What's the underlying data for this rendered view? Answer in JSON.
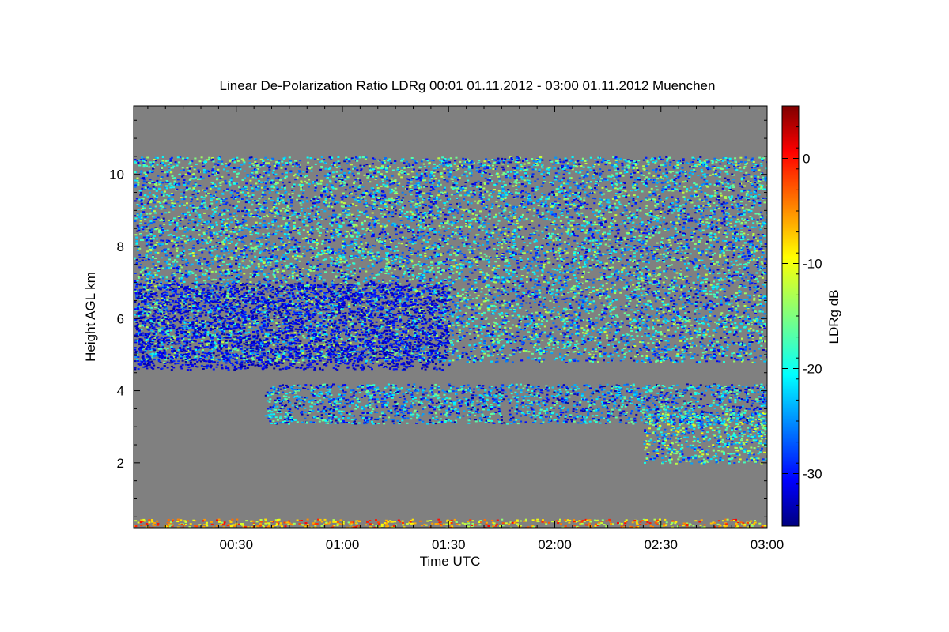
{
  "chart_data": {
    "type": "heatmap",
    "title": "Linear De-Polarization Ratio LDRg   00:01 01.11.2012 - 03:00 01.11.2012 Muenchen",
    "xlabel": "Time UTC",
    "ylabel": "Height AGL km",
    "x_unit": "time UTC (hh:mm)",
    "xlim": [
      "00:01",
      "03:00"
    ],
    "ylim": [
      0.2,
      11.9
    ],
    "x_ticks": [
      "00:30",
      "01:00",
      "01:30",
      "02:00",
      "02:30",
      "03:00"
    ],
    "y_ticks": [
      2,
      4,
      6,
      8,
      10
    ],
    "colorbar": {
      "label": "LDRg dB",
      "range": [
        -35,
        5
      ],
      "ticks": [
        0,
        -10,
        -20,
        -30
      ],
      "colormap": "jet"
    },
    "background_color": "#808080",
    "regions": [
      {
        "feature": "upper cirrus layer, top",
        "x": [
          "00:01",
          "03:00"
        ],
        "height_km": [
          4.8,
          10.5
        ],
        "ldr_db_range": [
          -33,
          -12
        ]
      },
      {
        "feature": "lower dense cloud base",
        "x": [
          "00:01",
          "01:30"
        ],
        "height_km": [
          4.6,
          7.0
        ],
        "ldr_db_range": [
          -34,
          -28
        ]
      },
      {
        "feature": "mid-level thin layer",
        "x": [
          "00:38",
          "03:00"
        ],
        "height_km": [
          3.1,
          4.2
        ],
        "ldr_db_range": [
          -34,
          -15
        ]
      },
      {
        "feature": "descending fall streaks",
        "x": [
          "02:25",
          "03:00"
        ],
        "height_km": [
          2.0,
          3.4
        ],
        "ldr_db_range": [
          -30,
          -10
        ]
      },
      {
        "feature": "near-surface aerosol/noise",
        "x": [
          "00:01",
          "03:00"
        ],
        "height_km": [
          0.2,
          0.45
        ],
        "ldr_db_range": [
          -15,
          0
        ]
      }
    ],
    "grid": false,
    "legend": "colorbar right"
  }
}
